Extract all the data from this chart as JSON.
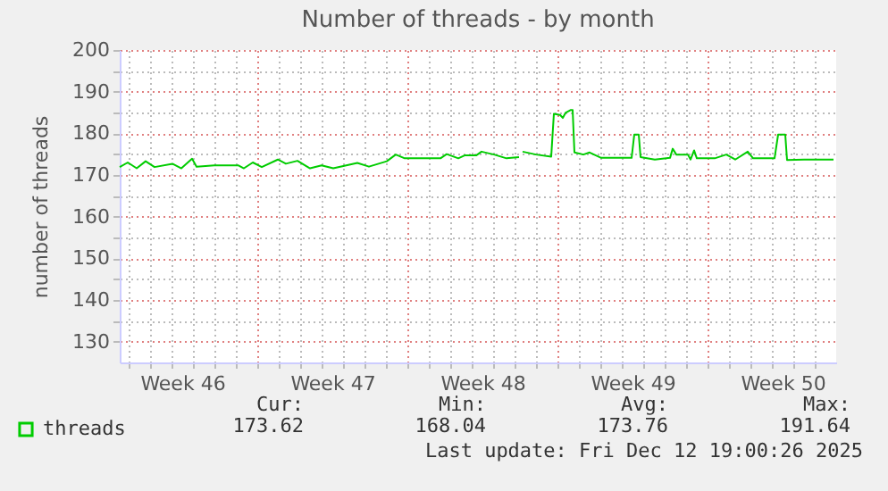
{
  "chart_data": {
    "type": "line",
    "title": "Number of threads - by month",
    "ylabel": "number of threads",
    "x": [
      "2025-11-10T14:00",
      "2025-11-10T23:00",
      "2025-11-11T09:00",
      "2025-11-11T19:00",
      "2025-11-12T05:00",
      "2025-11-13T01:00",
      "2025-11-13T11:00",
      "2025-11-13T23:00",
      "2025-11-14T04:00",
      "2025-11-15T00:00",
      "2025-11-16T03:00",
      "2025-11-16T09:00",
      "2025-11-16T19:00",
      "2025-11-17T05:00",
      "2025-11-17T23:00",
      "2025-11-18T08:00",
      "2025-11-18T21:00",
      "2025-11-19T11:00",
      "2025-11-20T00:00",
      "2025-11-20T13:00",
      "2025-11-21T16:00",
      "2025-11-22T05:00",
      "2025-11-23T01:00",
      "2025-11-23T11:00",
      "2025-11-23T21:00",
      "2025-11-25T13:00",
      "2025-11-25T20:00",
      "2025-11-26T09:00",
      "2025-11-26T16:00",
      "2025-11-27T05:00",
      "2025-11-27T11:00",
      "2025-11-28T01:00",
      "2025-11-28T15:00",
      "2025-11-29T05:00",
      "2025-11-29T07:00",
      "2025-11-29T09:00",
      "2025-11-30T00:00",
      "2025-11-30T17:00",
      "2025-11-30T20:00",
      "2025-12-01T03:00",
      "2025-12-01T06:00",
      "2025-12-01T09:00",
      "2025-12-01T15:00",
      "2025-12-01T17:00",
      "2025-12-01T19:00",
      "2025-12-02T05:00",
      "2025-12-02T12:00",
      "2025-12-03T01:00",
      "2025-12-04T11:00",
      "2025-12-04T14:00",
      "2025-12-04T19:00",
      "2025-12-04T21:00",
      "2025-12-05T13:00",
      "2025-12-06T06:00",
      "2025-12-06T09:00",
      "2025-12-06T13:00",
      "2025-12-07T02:00",
      "2025-12-07T05:00",
      "2025-12-07T09:00",
      "2025-12-07T12:00",
      "2025-12-08T08:00",
      "2025-12-08T21:00",
      "2025-12-09T07:00",
      "2025-12-09T21:00",
      "2025-12-10T03:00",
      "2025-12-11T03:00",
      "2025-12-11T07:00",
      "2025-12-11T15:00",
      "2025-12-11T17:00",
      "2025-12-12T12:00",
      "2025-12-13T21:00"
    ],
    "series": [
      {
        "name": "threads",
        "color": "#00cc00",
        "values": [
          171.9,
          173,
          171.6,
          173.3,
          171.9,
          172.7,
          171.6,
          173.9,
          172,
          172.3,
          172.3,
          171.6,
          173,
          171.9,
          173.7,
          172.7,
          173.4,
          171.6,
          172.3,
          171.6,
          172.9,
          172,
          173.3,
          174.9,
          174,
          174,
          175,
          174,
          174.7,
          174.7,
          175.6,
          174.9,
          174,
          174.3,
          null,
          175.6,
          174.9,
          174.4,
          184.7,
          184.4,
          183.7,
          184.9,
          185.6,
          185.6,
          175.4,
          174.9,
          175.4,
          174.1,
          174.1,
          179.7,
          179.7,
          174.3,
          173.7,
          174.1,
          176.3,
          174.9,
          174.9,
          173.7,
          175.9,
          174,
          174,
          174.9,
          173.7,
          175.6,
          174,
          174,
          179.7,
          179.7,
          173.6,
          173.7,
          173.7
        ]
      }
    ],
    "xlim": [
      "2025-11-10T14:00",
      "2025-12-14T00:00"
    ],
    "xticks": [
      {
        "value": "2025-11-11",
        "label": null
      },
      {
        "value": "2025-11-12",
        "label": null
      },
      {
        "value": "2025-11-13",
        "label": null
      },
      {
        "value": "2025-11-14",
        "label": null
      },
      {
        "value": "2025-11-15",
        "label": null
      },
      {
        "value": "2025-11-16",
        "label": null
      },
      {
        "value": "2025-11-17",
        "label": null
      },
      {
        "value": "2025-11-18",
        "label": null
      },
      {
        "value": "2025-11-19",
        "label": null
      },
      {
        "value": "2025-11-20",
        "label": null
      },
      {
        "value": "2025-11-21",
        "label": null
      },
      {
        "value": "2025-11-22",
        "label": null
      },
      {
        "value": "2025-11-23",
        "label": null
      },
      {
        "value": "2025-11-24",
        "label": null
      },
      {
        "value": "2025-11-25",
        "label": null
      },
      {
        "value": "2025-11-26",
        "label": null
      },
      {
        "value": "2025-11-27",
        "label": null
      },
      {
        "value": "2025-11-28",
        "label": null
      },
      {
        "value": "2025-11-29",
        "label": null
      },
      {
        "value": "2025-11-30",
        "label": null
      },
      {
        "value": "2025-12-01",
        "label": null
      },
      {
        "value": "2025-12-02",
        "label": null
      },
      {
        "value": "2025-12-03",
        "label": null
      },
      {
        "value": "2025-12-04",
        "label": null
      },
      {
        "value": "2025-12-05",
        "label": null
      },
      {
        "value": "2025-12-06",
        "label": null
      },
      {
        "value": "2025-12-07",
        "label": null
      },
      {
        "value": "2025-12-08",
        "label": null
      },
      {
        "value": "2025-12-09",
        "label": null
      },
      {
        "value": "2025-12-10",
        "label": null
      },
      {
        "value": "2025-12-11",
        "label": null
      },
      {
        "value": "2025-12-12",
        "label": null
      },
      {
        "value": "2025-12-13",
        "label": null
      },
      {
        "value": "2025-11-13T12:00",
        "label": "Week 46"
      },
      {
        "value": "2025-11-20T12:00",
        "label": "Week 47"
      },
      {
        "value": "2025-11-27T12:00",
        "label": "Week 48"
      },
      {
        "value": "2025-12-04T12:00",
        "label": "Week 49"
      },
      {
        "value": "2025-12-11T12:00",
        "label": "Week 50"
      }
    ],
    "ylim": [
      125,
      200
    ],
    "yticks": [
      130,
      {
        "value": 135,
        "label": null
      },
      140,
      {
        "value": 145,
        "label": null
      },
      150,
      {
        "value": 155,
        "label": null
      },
      160,
      {
        "value": 165,
        "label": null
      },
      170,
      {
        "value": 175,
        "label": null
      },
      180,
      {
        "value": 185,
        "label": null
      },
      190,
      {
        "value": 195,
        "label": null
      },
      200
    ],
    "grid": true,
    "legend": "bottom left",
    "annotations": [
      "Cur:",
      "Min:",
      "Avg:",
      "Max:",
      "173.62",
      "168.04",
      "173.76",
      "191.64",
      "Last update: Fri Dec 12 19:00:26 2025"
    ]
  }
}
